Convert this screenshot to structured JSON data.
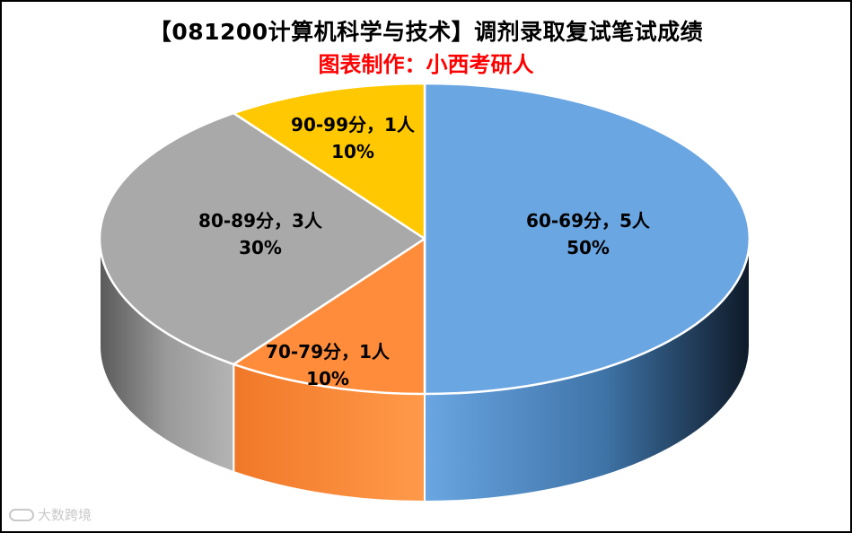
{
  "chart_data": {
    "type": "pie",
    "title": "【081200计算机科学与技术】调剂录取复试笔试成绩",
    "subtitle": "图表制作：小西考研人",
    "slices": [
      {
        "label": "60-69分，5人",
        "percent_label": "50%",
        "value": 5,
        "color": "#6aa6e2"
      },
      {
        "label": "70-79分，1人",
        "percent_label": "10%",
        "value": 1,
        "color": "#ff8c3a"
      },
      {
        "label": "80-89分，3人",
        "percent_label": "30%",
        "value": 3,
        "color": "#a9a9a9"
      },
      {
        "label": "90-99分，1人",
        "percent_label": "10%",
        "value": 1,
        "color": "#ffc800"
      }
    ],
    "style": "3d",
    "legend": "none"
  },
  "watermark": {
    "text": "大数跨境"
  }
}
